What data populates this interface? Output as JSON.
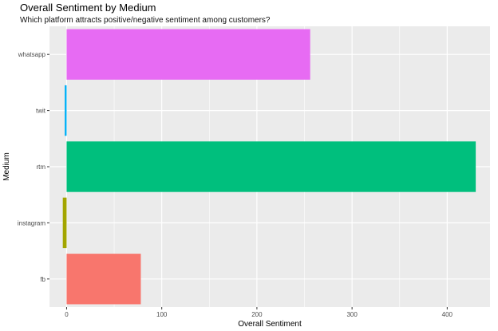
{
  "chart_data": {
    "type": "bar",
    "orientation": "horizontal",
    "title": "Overall Sentiment by Medium",
    "subtitle": "Which platform attracts positive/negative sentiment among customers?",
    "xlabel": "Overall Sentiment",
    "ylabel": "Medium",
    "categories": [
      "fb",
      "instagram",
      "rtm",
      "twit",
      "whatsapp"
    ],
    "values": [
      78,
      -4,
      430,
      -2,
      256
    ],
    "colors": [
      "#F8766D",
      "#A3A500",
      "#00BF7D",
      "#00B0F6",
      "#E76BF3"
    ],
    "xlim": [
      -18,
      445
    ],
    "xticks": [
      0,
      100,
      200,
      300,
      400
    ],
    "xtick_labels": [
      "0",
      "100",
      "200",
      "300",
      "400"
    ],
    "grid": true,
    "legend": "none",
    "panel_color": "#EBEBEB",
    "grid_color": "#FFFFFF"
  }
}
